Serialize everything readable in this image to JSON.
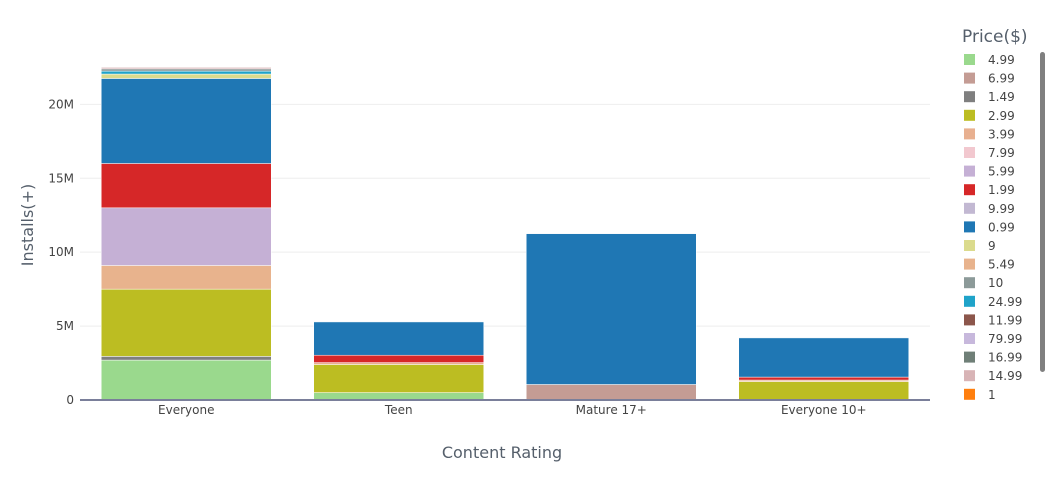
{
  "chart_data": {
    "type": "bar",
    "barmode": "stack",
    "categories": [
      "Everyone",
      "Teen",
      "Mature 17+",
      "Everyone 10+"
    ],
    "xlabel": "Content Rating",
    "ylabel": "Installs(+)",
    "ylim": [
      0,
      23000000
    ],
    "yticks": [
      {
        "value": 0,
        "label": "0"
      },
      {
        "value": 5000000,
        "label": "5M"
      },
      {
        "value": 10000000,
        "label": "10M"
      },
      {
        "value": 15000000,
        "label": "15M"
      },
      {
        "value": 20000000,
        "label": "20M"
      }
    ],
    "legend_title": "Price($)",
    "legend_position": "right",
    "series": [
      {
        "name": "4.99",
        "color": "#9ad98d",
        "values": [
          2700000,
          500000,
          0,
          0
        ]
      },
      {
        "name": "6.99",
        "color": "#c49c94",
        "values": [
          0,
          0,
          1050000,
          0
        ]
      },
      {
        "name": "1.49",
        "color": "#7f7f7f",
        "values": [
          250000,
          0,
          0,
          0
        ]
      },
      {
        "name": "2.99",
        "color": "#bcbd22",
        "values": [
          4550000,
          1900000,
          0,
          1250000
        ]
      },
      {
        "name": "3.99",
        "color": "#e8b090",
        "values": [
          0,
          130000,
          0,
          100000
        ]
      },
      {
        "name": "7.99",
        "color": "#f2c8cf",
        "values": [
          0,
          0,
          0,
          0
        ]
      },
      {
        "name": "5.99",
        "color": "#c5b0d5",
        "values": [
          0,
          0,
          0,
          0
        ]
      },
      {
        "name": "1.99",
        "color": "#d62728",
        "values": [
          3000000,
          500000,
          0,
          200000
        ]
      },
      {
        "name": "9.99",
        "color": "#c2b8d2",
        "values": [
          0,
          0,
          0,
          0
        ]
      },
      {
        "name": "0.99",
        "color": "#1f77b4",
        "values": [
          5750000,
          2250000,
          10200000,
          2650000
        ]
      },
      {
        "name": "9",
        "color": "#dbdb8d",
        "values": [
          0,
          0,
          0,
          0
        ]
      },
      {
        "name": "5.49",
        "color": "#e8b38d",
        "values": [
          0,
          0,
          0,
          0
        ]
      },
      {
        "name": "10",
        "color": "#8c9a99",
        "values": [
          0,
          0,
          0,
          0
        ]
      },
      {
        "name": "24.99",
        "color": "#1fa3c9",
        "values": [
          0,
          0,
          0,
          0
        ]
      },
      {
        "name": "11.99",
        "color": "#8c564b",
        "values": [
          0,
          0,
          0,
          0
        ]
      },
      {
        "name": "79.99",
        "color": "#c7b8dc",
        "values": [
          0,
          0,
          0,
          0
        ]
      },
      {
        "name": "16.99",
        "color": "#6f7f77",
        "values": [
          0,
          0,
          0,
          0
        ]
      },
      {
        "name": "14.99",
        "color": "#d8b4b6",
        "values": [
          0,
          0,
          0,
          0
        ]
      },
      {
        "name": "1",
        "color": "#ff7f0e",
        "values": [
          0,
          0,
          0,
          0
        ]
      }
    ],
    "everyone_top_segments": [
      {
        "name": "5.99",
        "color": "#c5b0d5",
        "values": [
          3900000,
          0,
          0,
          0
        ]
      },
      {
        "name": "3.99",
        "color": "#e8b38d",
        "values": [
          1600000,
          0,
          0,
          0
        ]
      },
      {
        "name": "9",
        "color": "#dbdb8d",
        "values": [
          300000,
          0,
          0,
          0
        ]
      },
      {
        "name": "24.99",
        "color": "#1fa3c9",
        "values": [
          200000,
          0,
          0,
          0
        ]
      },
      {
        "name": "10",
        "color": "#8c9a99",
        "values": [
          150000,
          0,
          0,
          0
        ]
      },
      {
        "name": "14.99",
        "color": "#d8b4b6",
        "values": [
          100000,
          0,
          0,
          0
        ]
      }
    ]
  }
}
